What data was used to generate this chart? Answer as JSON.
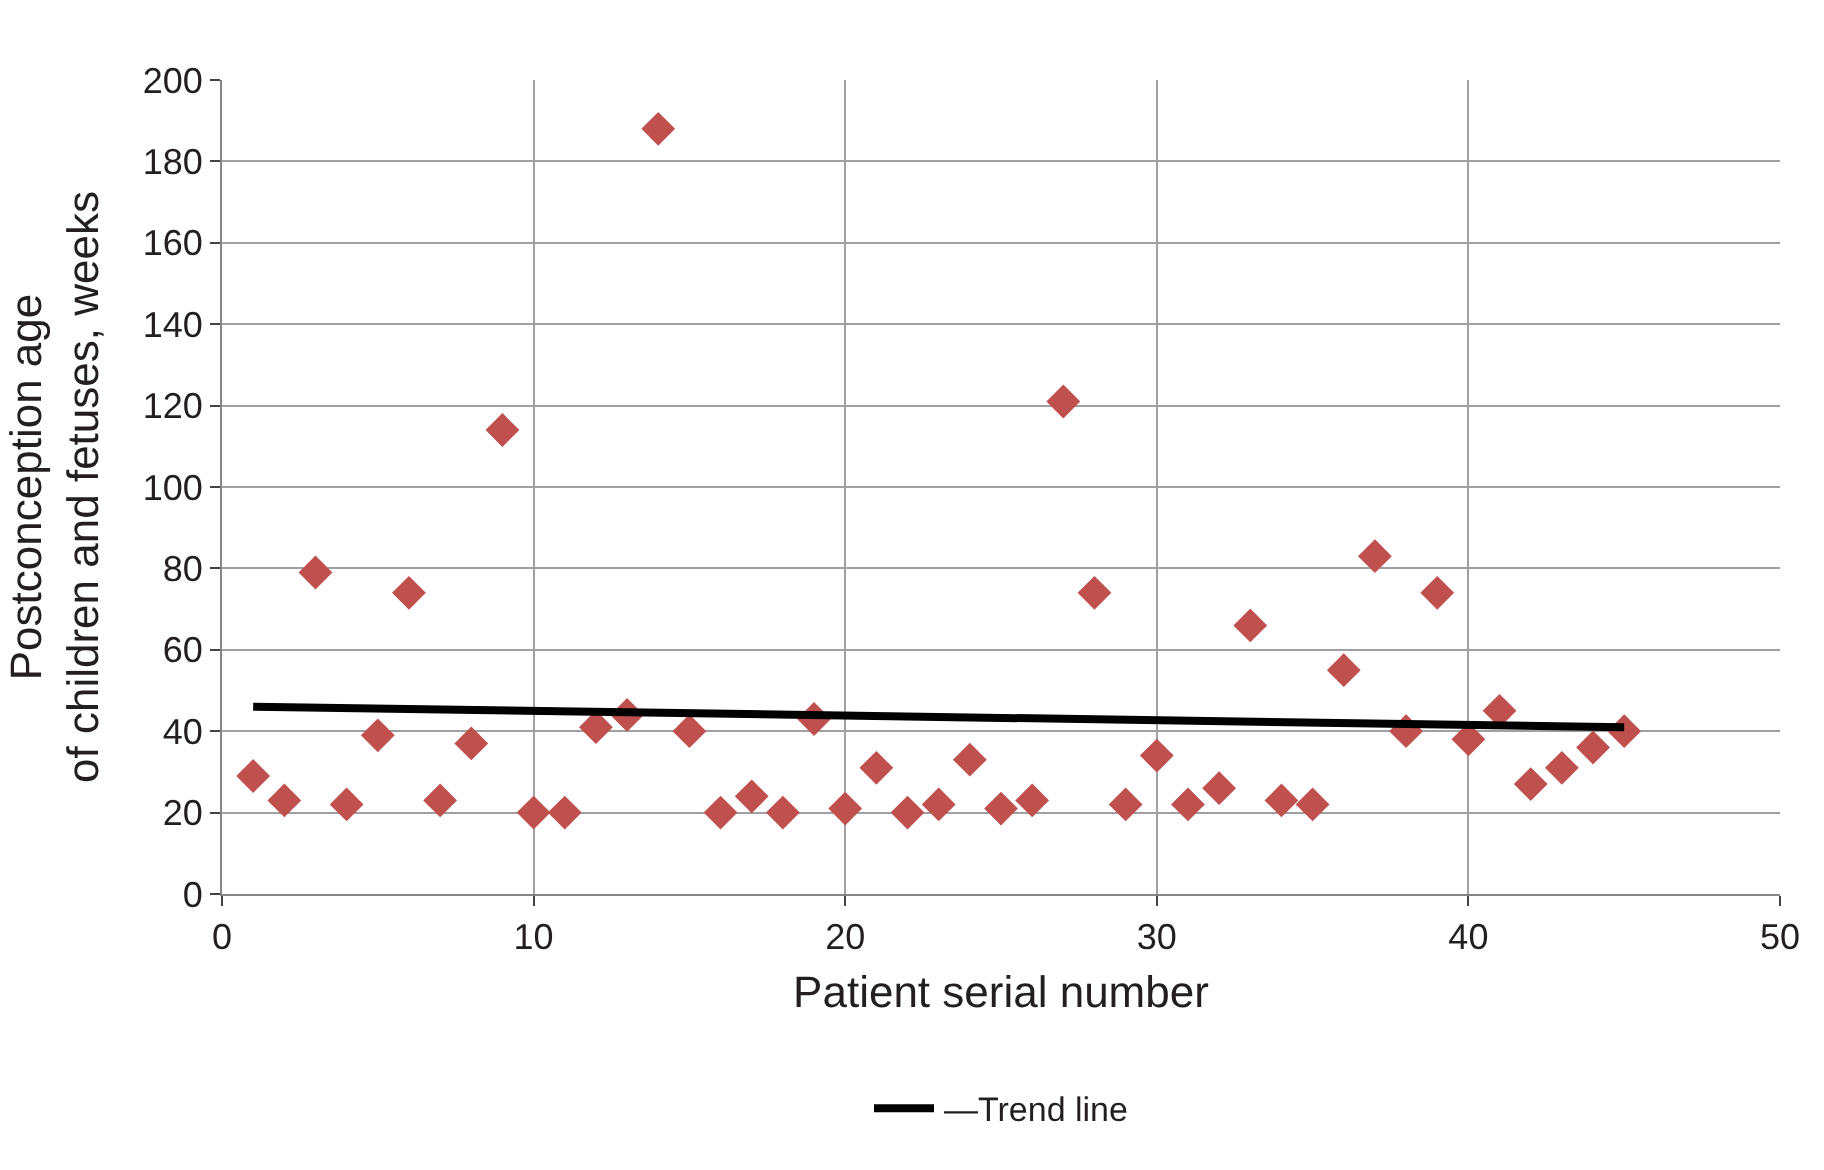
{
  "chart_data": {
    "type": "scatter",
    "xlabel": "Patient serial number",
    "ylabel": "Postconception age\nof children and fetuses, weeks",
    "xlim": [
      0,
      50
    ],
    "xticks": [
      0,
      10,
      20,
      30,
      40,
      50
    ],
    "ylim": [
      0,
      200
    ],
    "yticks": [
      0,
      20,
      40,
      60,
      80,
      100,
      120,
      140,
      160,
      180,
      200
    ],
    "grid": true,
    "legend": "bottom",
    "marker": "diamond",
    "series": [
      {
        "color": "#c0504d",
        "x": [
          1,
          2,
          3,
          4,
          5,
          6,
          7,
          8,
          9,
          10,
          11,
          12,
          13,
          14,
          15,
          16,
          17,
          18,
          19,
          20,
          21,
          22,
          23,
          24,
          25,
          26,
          27,
          28,
          29,
          30,
          31,
          32,
          33,
          34,
          35,
          36,
          37,
          38,
          39,
          40,
          41,
          42,
          43,
          44,
          45
        ],
        "values": [
          29,
          23,
          79,
          22,
          39,
          74,
          23,
          37,
          114,
          20,
          20,
          41,
          44,
          188,
          40,
          20,
          24,
          20,
          43,
          21,
          31,
          20,
          22,
          33,
          21,
          23,
          121,
          74,
          22,
          34,
          22,
          26,
          66,
          23,
          22,
          55,
          83,
          40,
          74,
          38,
          45,
          27,
          31,
          36,
          40
        ]
      },
      {
        "type": "line",
        "name": "—Trend line",
        "color": "#000000",
        "marker": "none",
        "x": [
          1,
          45
        ],
        "values": [
          46,
          41
        ]
      }
    ]
  }
}
